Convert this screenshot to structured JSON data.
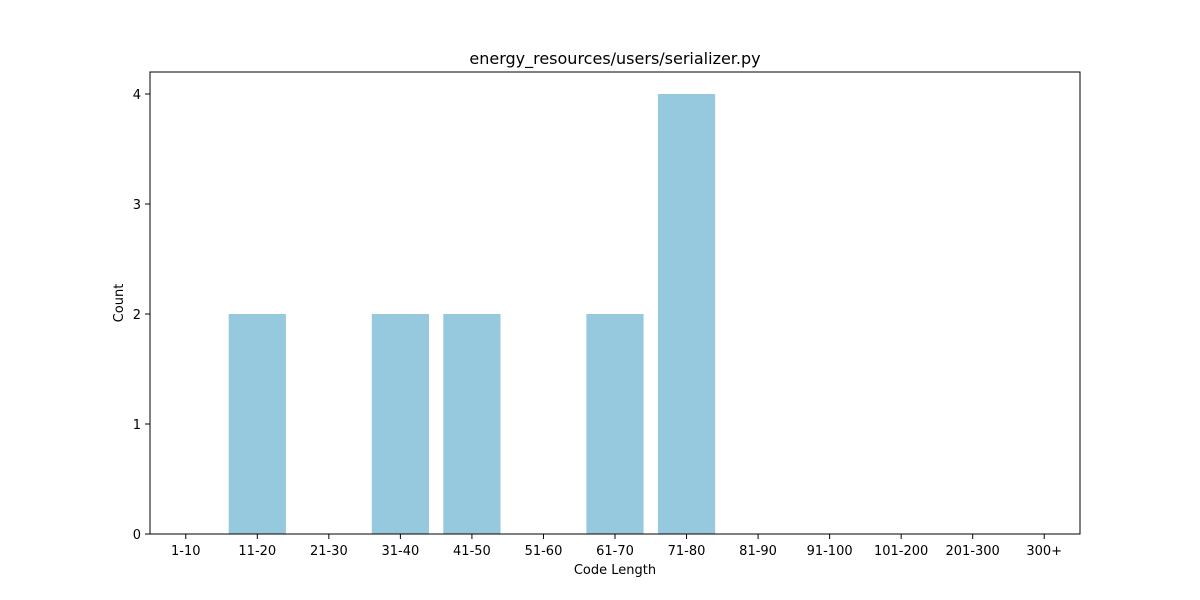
{
  "chart_data": {
    "type": "bar",
    "title": "energy_resources/users/serializer.py",
    "xlabel": "Code Length",
    "ylabel": "Count",
    "categories": [
      "1-10",
      "11-20",
      "21-30",
      "31-40",
      "41-50",
      "51-60",
      "61-70",
      "71-80",
      "81-90",
      "91-100",
      "101-200",
      "201-300",
      "300+"
    ],
    "values": [
      0,
      2,
      0,
      2,
      2,
      0,
      2,
      4,
      0,
      0,
      0,
      0,
      0
    ],
    "ylim": [
      0,
      4.2
    ],
    "yticks": [
      0,
      1,
      2,
      3,
      4
    ],
    "grid": false,
    "bar_color": "#96c9dd"
  }
}
